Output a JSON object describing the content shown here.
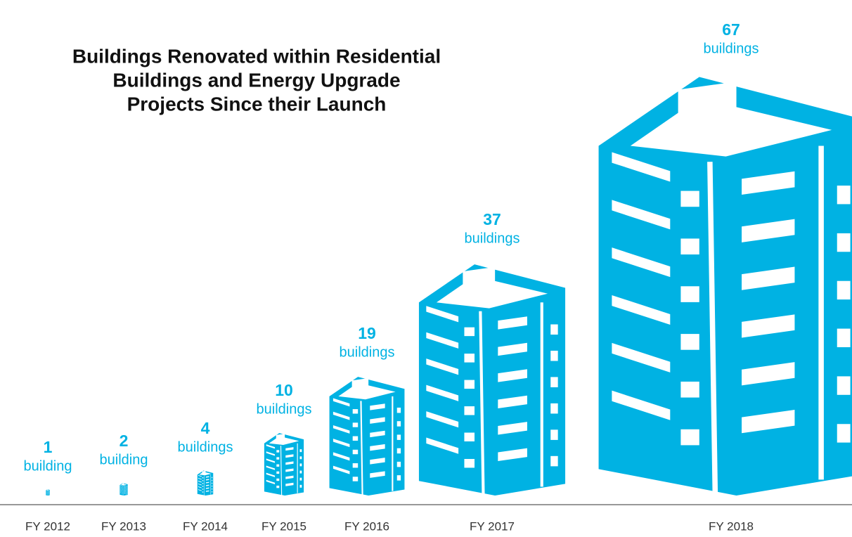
{
  "chart_data": {
    "type": "pictogram",
    "title": [
      "Buildings Renovated within Residential",
      "Buildings and Energy Upgrade",
      "Projects Since their Launch"
    ],
    "categories": [
      "FY 2012",
      "FY 2013",
      "FY 2014",
      "FY 2015",
      "FY 2016",
      "FY 2017",
      "FY 2018"
    ],
    "values": [
      1,
      2,
      4,
      10,
      19,
      37,
      67
    ],
    "unit_labels": [
      "building",
      "building",
      "buildings",
      "buildings",
      "buildings",
      "buildings",
      "buildings"
    ],
    "color": "#00b2e3"
  }
}
